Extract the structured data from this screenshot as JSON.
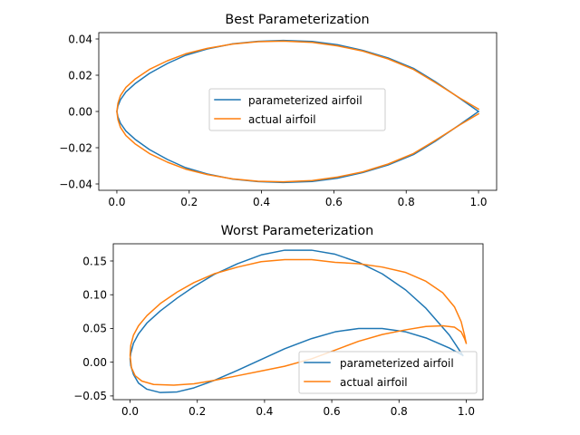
{
  "chart_data": [
    {
      "type": "line",
      "title": "Best Parameterization",
      "xlabel": "",
      "ylabel": "",
      "xlim": [
        -0.05,
        1.05
      ],
      "ylim": [
        -0.0435,
        0.0435
      ],
      "xticks": [
        0.0,
        0.2,
        0.4,
        0.6,
        0.8,
        1.0
      ],
      "xtick_labels": [
        "0.0",
        "0.2",
        "0.4",
        "0.6",
        "0.8",
        "1.0"
      ],
      "yticks": [
        -0.04,
        -0.02,
        0.0,
        0.02,
        0.04
      ],
      "ytick_labels": [
        "−0.04",
        "−0.02",
        "0.00",
        "0.02",
        "0.04"
      ],
      "grid": false,
      "legend_position": "center",
      "series": [
        {
          "name": "parameterized airfoil",
          "color": "#1f77b4",
          "x": [
            1.0,
            0.95,
            0.88,
            0.82,
            0.75,
            0.68,
            0.61,
            0.54,
            0.46,
            0.39,
            0.32,
            0.25,
            0.19,
            0.14,
            0.09,
            0.05,
            0.025,
            0.01,
            0.003,
            0.0,
            0.003,
            0.01,
            0.025,
            0.05,
            0.09,
            0.14,
            0.19,
            0.25,
            0.32,
            0.39,
            0.46,
            0.54,
            0.61,
            0.68,
            0.75,
            0.82,
            0.88,
            0.95,
            1.0
          ],
          "y": [
            0.0,
            0.007,
            0.0165,
            0.0238,
            0.0295,
            0.0337,
            0.0368,
            0.0386,
            0.0392,
            0.0387,
            0.0373,
            0.0345,
            0.031,
            0.0265,
            0.021,
            0.0153,
            0.0108,
            0.0065,
            0.003,
            0.0,
            -0.003,
            -0.0065,
            -0.0108,
            -0.0153,
            -0.021,
            -0.0265,
            -0.031,
            -0.0345,
            -0.0373,
            -0.0387,
            -0.0392,
            -0.0386,
            -0.0368,
            -0.0337,
            -0.0295,
            -0.0238,
            -0.0165,
            -0.007,
            0.0
          ]
        },
        {
          "name": "actual airfoil",
          "color": "#ff7f0e",
          "x": [
            1.0,
            0.95,
            0.88,
            0.82,
            0.75,
            0.68,
            0.61,
            0.54,
            0.46,
            0.39,
            0.32,
            0.25,
            0.19,
            0.14,
            0.09,
            0.05,
            0.025,
            0.01,
            0.003,
            0.0,
            0.003,
            0.01,
            0.025,
            0.05,
            0.09,
            0.14,
            0.19,
            0.25,
            0.32,
            0.39,
            0.46,
            0.54,
            0.61,
            0.68,
            0.75,
            0.82,
            0.88,
            0.95,
            1.0
          ],
          "y": [
            0.0013,
            0.0072,
            0.016,
            0.0232,
            0.029,
            0.0333,
            0.0362,
            0.0381,
            0.0388,
            0.0385,
            0.0372,
            0.0348,
            0.0318,
            0.028,
            0.0232,
            0.0178,
            0.0133,
            0.0088,
            0.0045,
            0.0,
            -0.0045,
            -0.0088,
            -0.0133,
            -0.0178,
            -0.0232,
            -0.028,
            -0.0318,
            -0.0348,
            -0.0372,
            -0.0385,
            -0.0388,
            -0.0381,
            -0.0362,
            -0.0333,
            -0.029,
            -0.0232,
            -0.016,
            -0.0072,
            -0.0013
          ]
        }
      ]
    },
    {
      "type": "line",
      "title": "Worst Parameterization",
      "xlabel": "",
      "ylabel": "",
      "xlim": [
        -0.05,
        1.05
      ],
      "ylim": [
        -0.0555,
        0.1755
      ],
      "xticks": [
        0.0,
        0.2,
        0.4,
        0.6,
        0.8,
        1.0
      ],
      "xtick_labels": [
        "0.0",
        "0.2",
        "0.4",
        "0.6",
        "0.8",
        "1.0"
      ],
      "yticks": [
        -0.05,
        0.0,
        0.05,
        0.1,
        0.15
      ],
      "ytick_labels": [
        "−0.05",
        "0.00",
        "0.05",
        "0.10",
        "0.15"
      ],
      "grid": false,
      "legend_position": "lower right",
      "series": [
        {
          "name": "parameterized airfoil",
          "color": "#1f77b4",
          "x": [
            0.99,
            0.95,
            0.88,
            0.82,
            0.75,
            0.68,
            0.61,
            0.54,
            0.46,
            0.39,
            0.32,
            0.25,
            0.19,
            0.14,
            0.09,
            0.05,
            0.025,
            0.01,
            0.002,
            0.0,
            0.002,
            0.01,
            0.025,
            0.05,
            0.09,
            0.14,
            0.19,
            0.25,
            0.32,
            0.39,
            0.46,
            0.54,
            0.61,
            0.68,
            0.75,
            0.82,
            0.88,
            0.95,
            0.99
          ],
          "y": [
            0.01,
            0.04,
            0.08,
            0.107,
            0.131,
            0.148,
            0.16,
            0.166,
            0.166,
            0.159,
            0.146,
            0.13,
            0.112,
            0.095,
            0.076,
            0.058,
            0.042,
            0.028,
            0.013,
            0.005,
            -0.005,
            -0.018,
            -0.031,
            -0.04,
            -0.045,
            -0.044,
            -0.038,
            -0.027,
            -0.012,
            0.004,
            0.02,
            0.035,
            0.045,
            0.05,
            0.05,
            0.045,
            0.036,
            0.021,
            0.01
          ]
        },
        {
          "name": "actual airfoil",
          "color": "#ff7f0e",
          "x": [
            1.0,
            0.995,
            0.985,
            0.965,
            0.93,
            0.88,
            0.82,
            0.75,
            0.68,
            0.61,
            0.54,
            0.46,
            0.39,
            0.32,
            0.25,
            0.19,
            0.14,
            0.09,
            0.05,
            0.025,
            0.01,
            0.002,
            0.0,
            0.004,
            0.015,
            0.035,
            0.07,
            0.13,
            0.19,
            0.25,
            0.32,
            0.39,
            0.46,
            0.54,
            0.61,
            0.68,
            0.75,
            0.82,
            0.88,
            0.93,
            0.965,
            0.985,
            0.995,
            1.0
          ],
          "y": [
            0.028,
            0.04,
            0.06,
            0.082,
            0.103,
            0.12,
            0.133,
            0.141,
            0.146,
            0.148,
            0.152,
            0.152,
            0.149,
            0.141,
            0.131,
            0.118,
            0.104,
            0.087,
            0.069,
            0.054,
            0.04,
            0.025,
            0.01,
            -0.008,
            -0.02,
            -0.028,
            -0.033,
            -0.034,
            -0.032,
            -0.027,
            -0.02,
            -0.013,
            -0.006,
            0.005,
            0.018,
            0.031,
            0.041,
            0.048,
            0.053,
            0.054,
            0.052,
            0.045,
            0.035,
            0.028
          ]
        }
      ]
    }
  ]
}
